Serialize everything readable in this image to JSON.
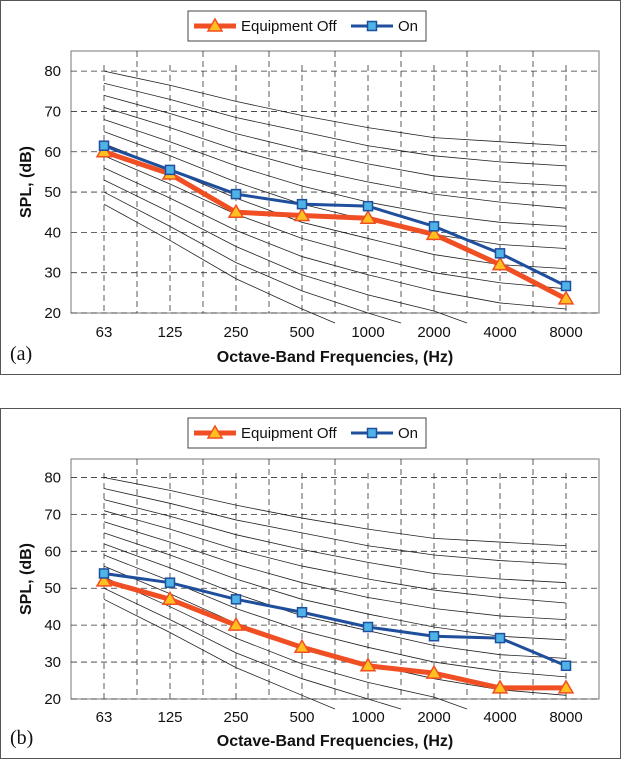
{
  "chart_data": [
    {
      "type": "line",
      "panel_label": "(a)",
      "xlabel": "Octave-Band Frequencies, (Hz)",
      "ylabel": "SPL, (dB)",
      "categories": [
        "63",
        "125",
        "250",
        "500",
        "1000",
        "2000",
        "4000",
        "8000"
      ],
      "yticks": [
        "20",
        "30",
        "40",
        "50",
        "60",
        "70",
        "80"
      ],
      "ylim": [
        20,
        85
      ],
      "grid": true,
      "legend": "top-center",
      "series": [
        {
          "name": "Equipment Off",
          "color": "#F04E23",
          "marker": "triangle",
          "values": [
            60,
            54.5,
            45,
            44.2,
            43.5,
            39.5,
            32,
            23.5
          ]
        },
        {
          "name": "On",
          "color": "#1F4E9C",
          "marker": "square",
          "values": [
            61.5,
            55.5,
            49.5,
            47,
            46.5,
            41.5,
            34.8,
            26.7
          ]
        }
      ],
      "background_curves": [
        [
          80,
          76.5,
          72.5,
          69,
          66,
          63.5,
          62.5,
          61.5
        ],
        [
          77,
          73,
          68.5,
          65,
          61.5,
          59,
          57.5,
          56.5
        ],
        [
          74,
          69.5,
          64.5,
          60.5,
          57,
          54,
          52.5,
          51.5
        ],
        [
          71,
          66,
          60.5,
          56,
          52.5,
          49.5,
          47.5,
          46
        ],
        [
          68,
          62.5,
          56.5,
          51.5,
          47.5,
          44.5,
          42.5,
          41.5
        ],
        [
          65,
          59,
          52.5,
          47,
          43,
          39.5,
          37,
          36
        ],
        [
          62,
          55.5,
          48.5,
          42.5,
          38.5,
          34.5,
          32,
          31
        ],
        [
          59,
          52,
          44.5,
          38.5,
          34,
          30,
          27.5,
          26
        ],
        [
          56,
          48.5,
          40.5,
          34,
          29.5,
          25.5,
          22.5,
          21
        ],
        [
          53,
          45,
          36.5,
          29.5,
          24.5,
          20.5,
          null,
          null
        ],
        [
          50,
          41.5,
          32.5,
          25.5,
          20,
          null,
          null,
          null
        ],
        [
          47,
          38,
          28.5,
          21,
          null,
          null,
          null,
          null
        ]
      ]
    },
    {
      "type": "line",
      "panel_label": "(b)",
      "xlabel": "Octave-Band Frequencies, (Hz)",
      "ylabel": "SPL, (dB)",
      "categories": [
        "63",
        "125",
        "250",
        "500",
        "1000",
        "2000",
        "4000",
        "8000"
      ],
      "yticks": [
        "20",
        "30",
        "40",
        "50",
        "60",
        "70",
        "80"
      ],
      "ylim": [
        20,
        85
      ],
      "grid": true,
      "legend": "top-center",
      "series": [
        {
          "name": "Equipment Off",
          "color": "#F04E23",
          "marker": "triangle",
          "values": [
            52,
            47,
            40,
            34,
            29,
            27,
            23,
            23
          ]
        },
        {
          "name": "On",
          "color": "#1F4E9C",
          "marker": "square",
          "values": [
            54,
            51.5,
            47,
            43.5,
            39.5,
            37,
            36.5,
            29
          ]
        }
      ],
      "background_curves": [
        [
          80,
          76.5,
          72.5,
          69,
          66,
          63.5,
          62.5,
          61.5
        ],
        [
          77,
          73,
          68.5,
          65,
          61.5,
          59,
          57.5,
          56.5
        ],
        [
          74,
          69.5,
          64.5,
          60.5,
          57,
          54,
          52.5,
          51.5
        ],
        [
          71,
          66,
          60.5,
          56,
          52.5,
          49.5,
          47.5,
          46
        ],
        [
          68,
          62.5,
          56.5,
          51.5,
          47.5,
          44.5,
          42.5,
          41.5
        ],
        [
          65,
          59,
          52.5,
          47,
          43,
          39.5,
          37,
          36
        ],
        [
          62,
          55.5,
          48.5,
          42.5,
          38.5,
          34.5,
          32,
          31
        ],
        [
          59,
          52,
          44.5,
          38.5,
          34,
          30,
          27.5,
          26
        ],
        [
          56,
          48.5,
          40.5,
          34,
          29.5,
          25.5,
          22.5,
          21
        ],
        [
          53,
          45,
          36.5,
          29.5,
          24.5,
          20.5,
          null,
          null
        ],
        [
          50,
          41.5,
          32.5,
          25.5,
          20,
          null,
          null,
          null
        ],
        [
          47,
          38,
          28.5,
          21,
          null,
          null,
          null,
          null
        ]
      ]
    }
  ]
}
